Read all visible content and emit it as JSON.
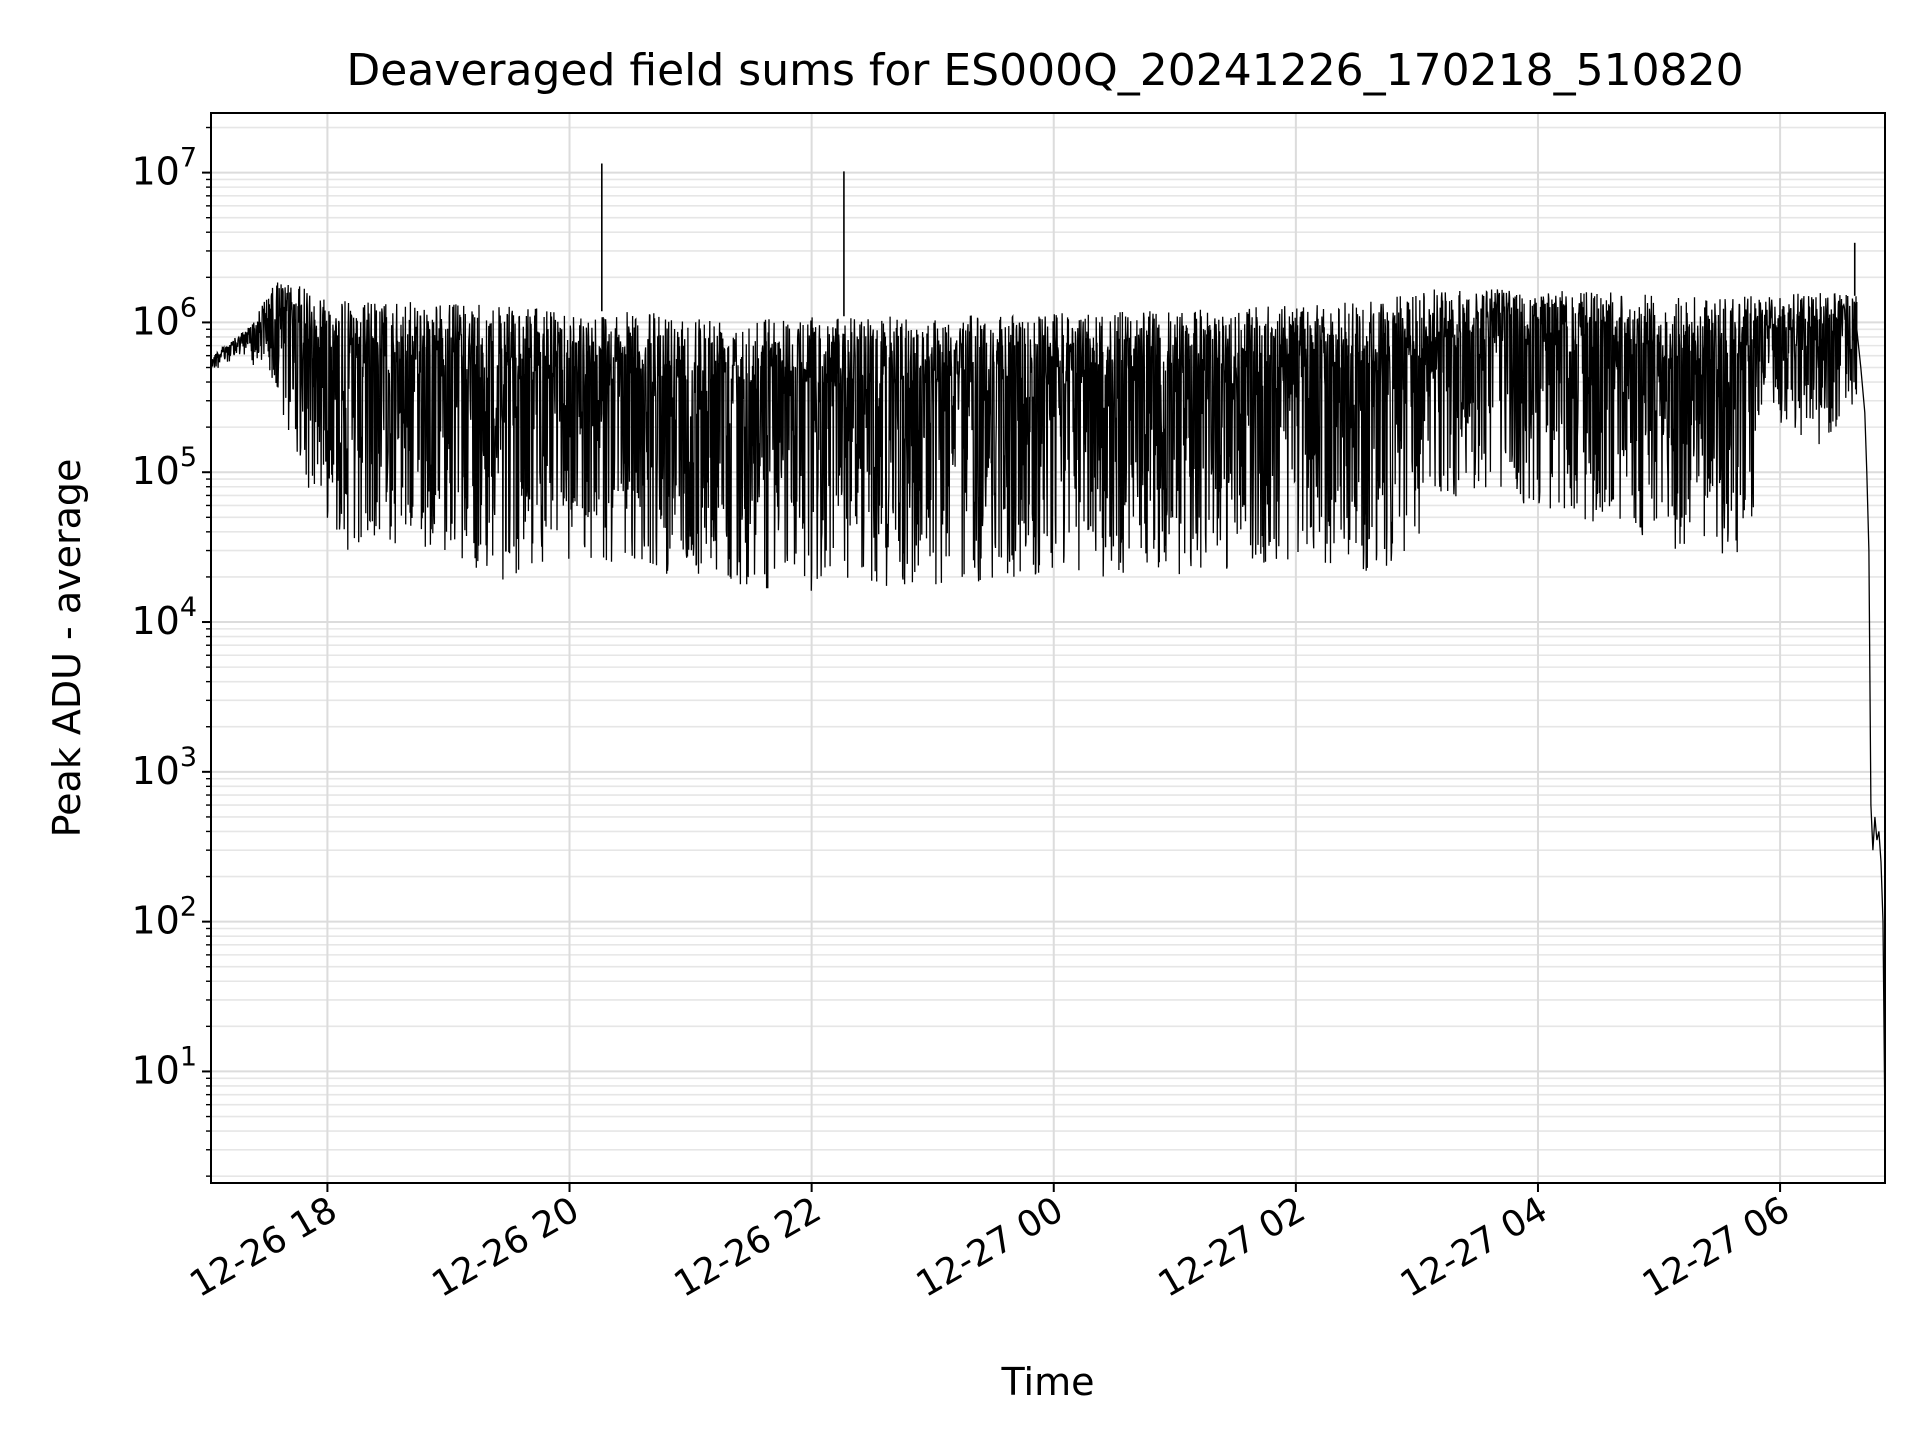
{
  "chart_data": {
    "type": "line",
    "title": "Deaveraged field sums for ES000Q_20241226_170218_510820",
    "xlabel": "Time",
    "ylabel": "Peak ADU - average",
    "x_scale": "time",
    "y_scale": "log",
    "xlim": [
      "2024-12-26T17:02:18",
      "2024-12-27T06:52:00"
    ],
    "ylim": [
      1.8,
      25000000
    ],
    "grid": "major and minor",
    "x_ticks": [
      {
        "value": "2024-12-26T18:00:00",
        "label": "12-26 18"
      },
      {
        "value": "2024-12-26T20:00:00",
        "label": "12-26 20"
      },
      {
        "value": "2024-12-26T22:00:00",
        "label": "12-26 22"
      },
      {
        "value": "2024-12-27T00:00:00",
        "label": "12-27 00"
      },
      {
        "value": "2024-12-27T02:00:00",
        "label": "12-27 02"
      },
      {
        "value": "2024-12-27T04:00:00",
        "label": "12-27 04"
      },
      {
        "value": "2024-12-27T06:00:00",
        "label": "12-27 06"
      }
    ],
    "y_ticks": [
      {
        "value": 10,
        "base": "10",
        "exp": "1"
      },
      {
        "value": 100,
        "base": "10",
        "exp": "2"
      },
      {
        "value": 1000,
        "base": "10",
        "exp": "3"
      },
      {
        "value": 10000,
        "base": "10",
        "exp": "4"
      },
      {
        "value": 100000,
        "base": "10",
        "exp": "5"
      },
      {
        "value": 1000000,
        "base": "10",
        "exp": "6"
      },
      {
        "value": 10000000,
        "base": "10",
        "exp": "7"
      }
    ],
    "series": [
      {
        "color": "#000000",
        "envelope": [
          {
            "x": "2024-12-26T17:02:18",
            "upper": 600000,
            "lower": 450000
          },
          {
            "x": "2024-12-26T17:20:00",
            "upper": 900000,
            "lower": 600000
          },
          {
            "x": "2024-12-26T17:35:00",
            "upper": 1900000,
            "lower": 300000
          },
          {
            "x": "2024-12-26T17:50:00",
            "upper": 1700000,
            "lower": 80000
          },
          {
            "x": "2024-12-26T18:10:00",
            "upper": 1400000,
            "lower": 30000
          },
          {
            "x": "2024-12-26T19:00:00",
            "upper": 1350000,
            "lower": 30000
          },
          {
            "x": "2024-12-26T19:20:00",
            "upper": 1300000,
            "lower": 18000
          },
          {
            "x": "2024-12-26T20:00:00",
            "upper": 1200000,
            "lower": 25000
          },
          {
            "x": "2024-12-26T21:00:00",
            "upper": 1150000,
            "lower": 20000
          },
          {
            "x": "2024-12-26T22:00:00",
            "upper": 1100000,
            "lower": 15000
          },
          {
            "x": "2024-12-26T23:00:00",
            "upper": 1100000,
            "lower": 17000
          },
          {
            "x": "2024-12-27T00:00:00",
            "upper": 1150000,
            "lower": 20000
          },
          {
            "x": "2024-12-27T01:00:00",
            "upper": 1200000,
            "lower": 20000
          },
          {
            "x": "2024-12-27T02:00:00",
            "upper": 1300000,
            "lower": 25000
          },
          {
            "x": "2024-12-27T02:40:00",
            "upper": 1400000,
            "lower": 20000
          },
          {
            "x": "2024-12-27T03:00:00",
            "upper": 1600000,
            "lower": 35000
          },
          {
            "x": "2024-12-27T03:10:00",
            "upper": 1700000,
            "lower": 70000
          },
          {
            "x": "2024-12-27T04:00:00",
            "upper": 1700000,
            "lower": 60000
          },
          {
            "x": "2024-12-27T04:40:00",
            "upper": 1600000,
            "lower": 40000
          },
          {
            "x": "2024-12-27T05:10:00",
            "upper": 1500000,
            "lower": 25000
          },
          {
            "x": "2024-12-27T05:45:00",
            "upper": 1500000,
            "lower": 28000
          },
          {
            "x": "2024-12-27T05:50:00",
            "upper": 1500000,
            "lower": 200000
          },
          {
            "x": "2024-12-27T06:20:00",
            "upper": 1600000,
            "lower": 150000
          },
          {
            "x": "2024-12-27T06:38:00",
            "upper": 1500000,
            "lower": 300000
          }
        ],
        "spikes": [
          {
            "x": "2024-12-26T20:16:00",
            "y": 11500000
          },
          {
            "x": "2024-12-26T22:16:00",
            "y": 10200000
          },
          {
            "x": "2024-12-27T06:37:00",
            "y": 3400000
          }
        ],
        "tail": [
          {
            "x": "2024-12-27T06:38:00",
            "y": 900000
          },
          {
            "x": "2024-12-27T06:40:00",
            "y": 500000
          },
          {
            "x": "2024-12-27T06:42:00",
            "y": 250000
          },
          {
            "x": "2024-12-27T06:43:00",
            "y": 100000
          },
          {
            "x": "2024-12-27T06:44:00",
            "y": 30000
          },
          {
            "x": "2024-12-27T06:45:00",
            "y": 600
          },
          {
            "x": "2024-12-27T06:46:00",
            "y": 300
          },
          {
            "x": "2024-12-27T06:47:00",
            "y": 500
          },
          {
            "x": "2024-12-27T06:48:00",
            "y": 350
          },
          {
            "x": "2024-12-27T06:49:00",
            "y": 400
          },
          {
            "x": "2024-12-27T06:50:00",
            "y": 250
          },
          {
            "x": "2024-12-27T06:51:00",
            "y": 100
          },
          {
            "x": "2024-12-27T06:51:30",
            "y": 20
          },
          {
            "x": "2024-12-27T06:52:00",
            "y": 4
          }
        ]
      }
    ]
  }
}
